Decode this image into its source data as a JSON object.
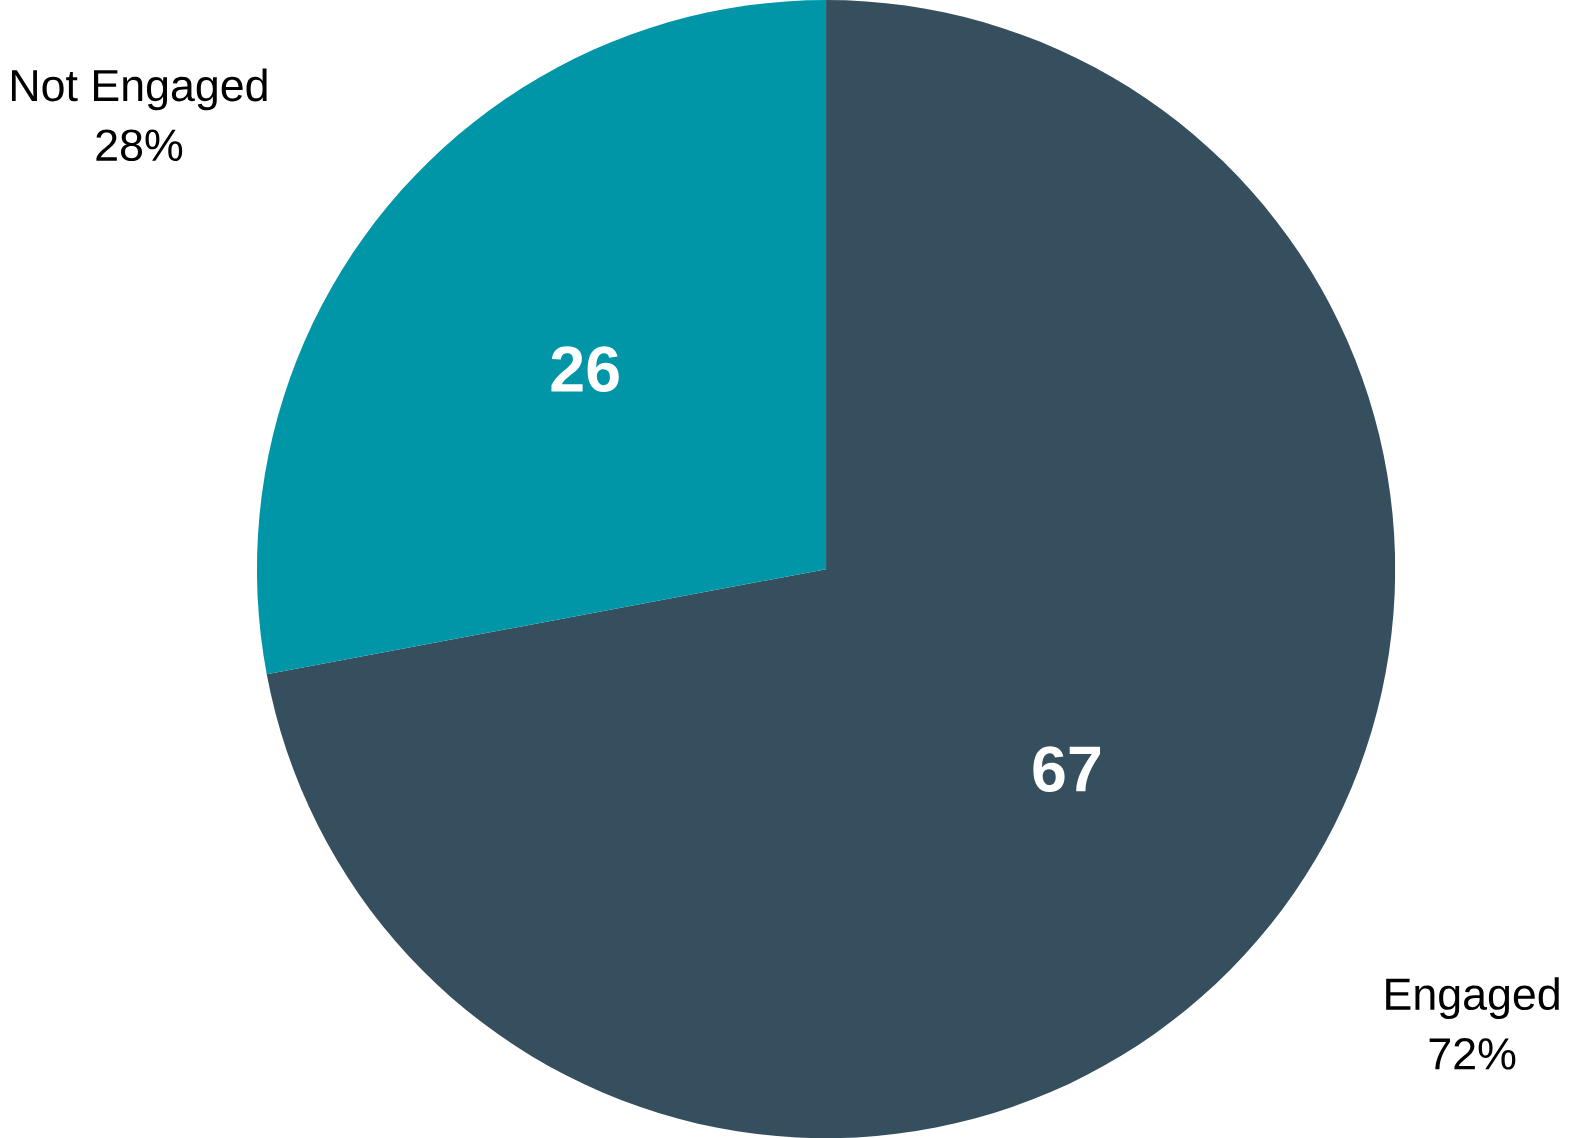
{
  "chart_data": {
    "type": "pie",
    "categories": [
      "Engaged",
      "Not Engaged"
    ],
    "values": [
      67,
      26
    ],
    "colors": [
      "#364f5e",
      "#0096a8"
    ],
    "value_labels": [
      "67",
      "26"
    ],
    "annotations": [
      "72%",
      "28%"
    ]
  }
}
